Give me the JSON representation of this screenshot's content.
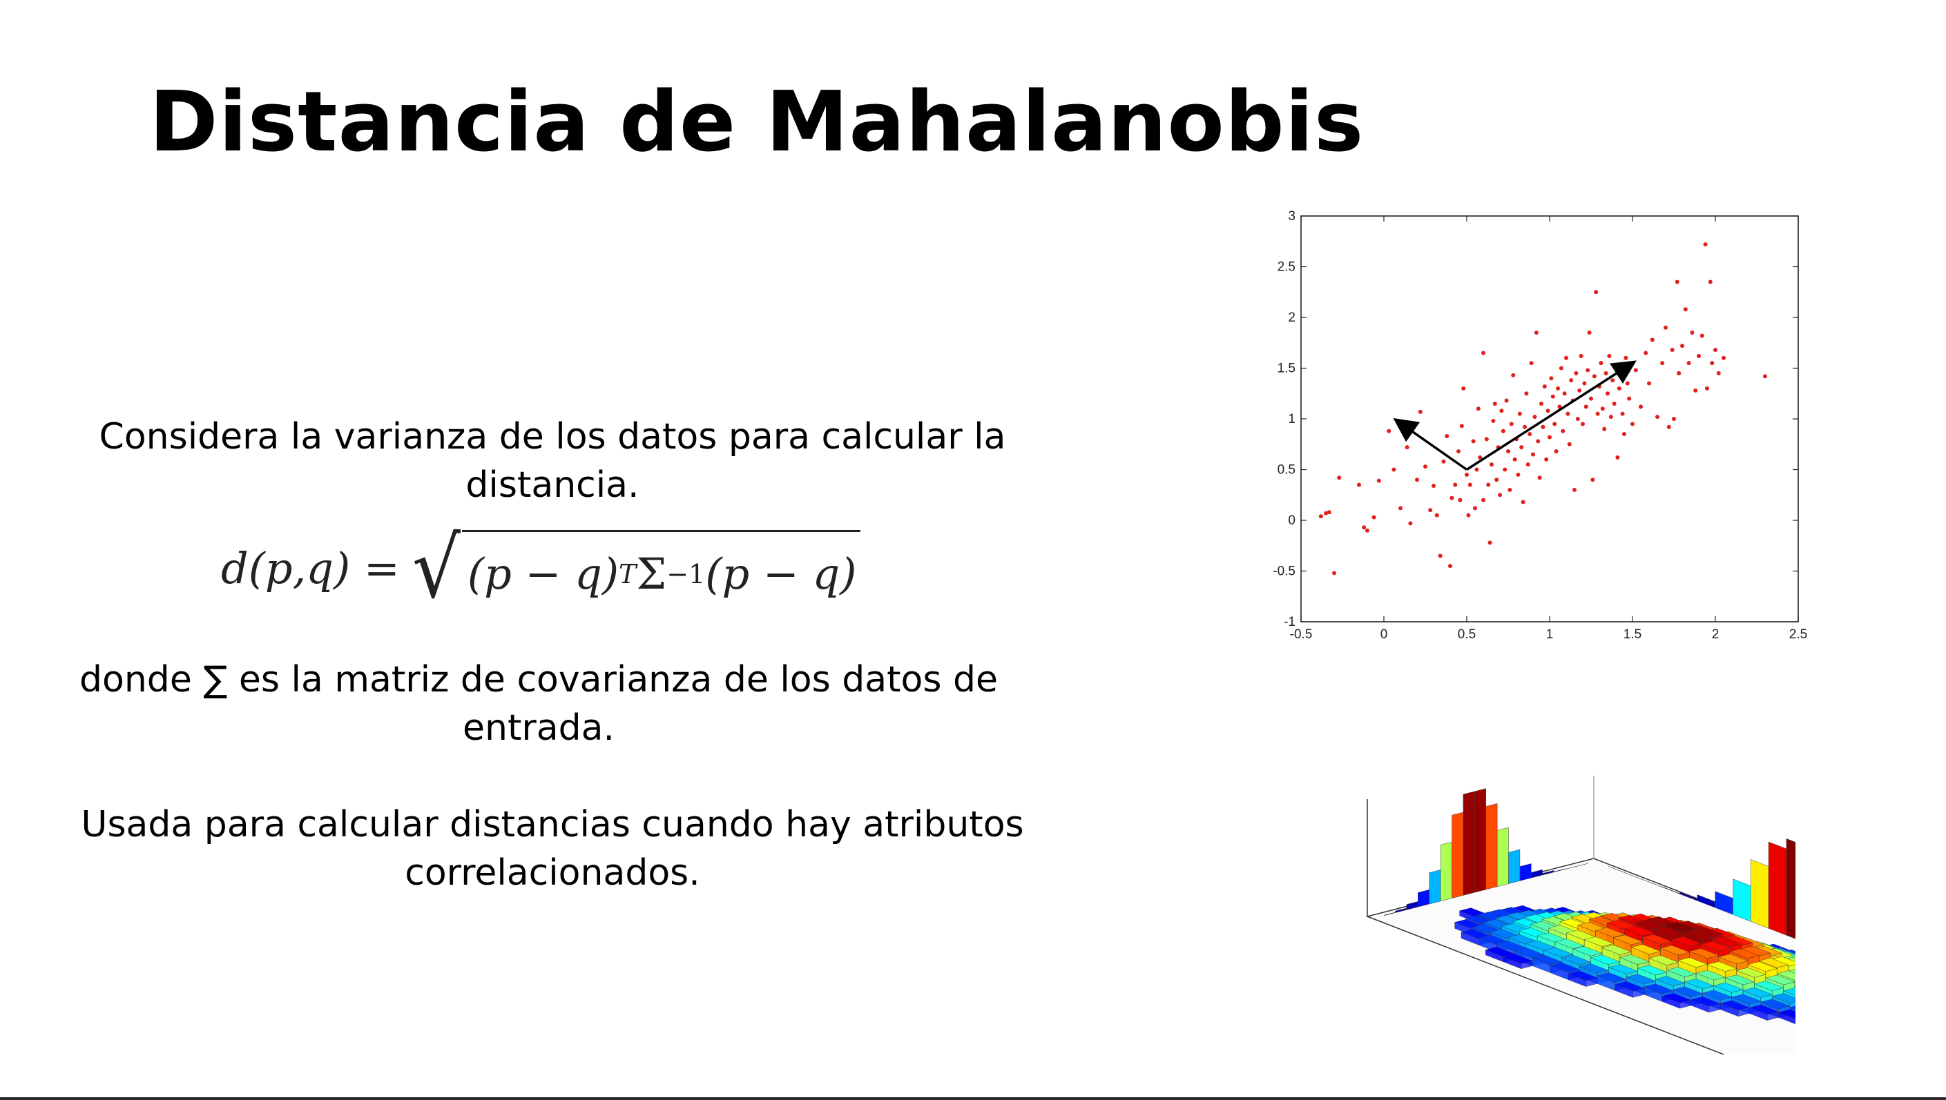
{
  "slide": {
    "title": "Distancia de Mahalanobis",
    "para1": "Considera la varianza de los datos para calcular la distancia.",
    "formula": {
      "lhs": "d(p,q) =",
      "radicand_a": "(p − q)",
      "sup_a": "T",
      "radicand_b": "Σ",
      "sup_b": "−1",
      "radicand_c": "(p − q)"
    },
    "para2": "donde ∑ es la matriz de covarianza de los datos de entrada.",
    "para3": "Usada para calcular distancias cuando hay atributos correlacionados."
  },
  "chart_data": [
    {
      "type": "scatter",
      "title": "",
      "xlabel": "",
      "ylabel": "",
      "xlim": [
        -0.5,
        2.5
      ],
      "ylim": [
        -1,
        3
      ],
      "xticks": [
        "-0.5",
        "0",
        "0.5",
        "1",
        "1.5",
        "2",
        "2.5"
      ],
      "yticks": [
        "-1",
        "-0.5",
        "0",
        "0.5",
        "1",
        "1.5",
        "2",
        "2.5",
        "3"
      ],
      "point_color": "#e0201b",
      "series": [
        {
          "points": [
            [
              -0.38,
              0.04
            ],
            [
              -0.35,
              0.07
            ],
            [
              -0.33,
              0.08
            ],
            [
              -0.3,
              -0.52
            ],
            [
              -0.27,
              0.42
            ],
            [
              -0.15,
              0.35
            ],
            [
              -0.12,
              -0.07
            ],
            [
              -0.1,
              -0.1
            ],
            [
              -0.06,
              0.03
            ],
            [
              -0.03,
              0.39
            ],
            [
              0.03,
              0.88
            ],
            [
              0.06,
              0.5
            ],
            [
              0.1,
              0.12
            ],
            [
              0.14,
              0.72
            ],
            [
              0.16,
              -0.03
            ],
            [
              0.2,
              0.4
            ],
            [
              0.22,
              1.07
            ],
            [
              0.25,
              0.53
            ],
            [
              0.28,
              0.1
            ],
            [
              0.3,
              0.34
            ],
            [
              0.32,
              0.05
            ],
            [
              0.34,
              -0.35
            ],
            [
              0.36,
              0.58
            ],
            [
              0.38,
              0.83
            ],
            [
              0.4,
              -0.45
            ],
            [
              0.41,
              0.22
            ],
            [
              0.43,
              0.35
            ],
            [
              0.45,
              0.68
            ],
            [
              0.46,
              0.2
            ],
            [
              0.47,
              0.93
            ],
            [
              0.48,
              1.3
            ],
            [
              0.5,
              0.45
            ],
            [
              0.51,
              0.05
            ],
            [
              0.52,
              0.35
            ],
            [
              0.54,
              0.78
            ],
            [
              0.55,
              0.12
            ],
            [
              0.56,
              0.5
            ],
            [
              0.57,
              1.1
            ],
            [
              0.58,
              0.62
            ],
            [
              0.6,
              0.2
            ],
            [
              0.6,
              1.65
            ],
            [
              0.62,
              0.8
            ],
            [
              0.63,
              0.35
            ],
            [
              0.64,
              -0.22
            ],
            [
              0.65,
              0.55
            ],
            [
              0.66,
              0.98
            ],
            [
              0.67,
              1.15
            ],
            [
              0.68,
              0.4
            ],
            [
              0.69,
              0.72
            ],
            [
              0.7,
              0.25
            ],
            [
              0.71,
              1.08
            ],
            [
              0.72,
              0.88
            ],
            [
              0.73,
              0.5
            ],
            [
              0.74,
              1.18
            ],
            [
              0.75,
              0.68
            ],
            [
              0.76,
              0.3
            ],
            [
              0.77,
              0.95
            ],
            [
              0.78,
              1.43
            ],
            [
              0.79,
              0.6
            ],
            [
              0.8,
              0.8
            ],
            [
              0.81,
              0.45
            ],
            [
              0.82,
              1.05
            ],
            [
              0.83,
              0.72
            ],
            [
              0.84,
              0.18
            ],
            [
              0.85,
              0.92
            ],
            [
              0.86,
              1.25
            ],
            [
              0.87,
              0.55
            ],
            [
              0.88,
              0.85
            ],
            [
              0.89,
              1.55
            ],
            [
              0.9,
              0.65
            ],
            [
              0.91,
              1.02
            ],
            [
              0.92,
              1.85
            ],
            [
              0.93,
              0.78
            ],
            [
              0.94,
              0.42
            ],
            [
              0.95,
              1.15
            ],
            [
              0.96,
              0.92
            ],
            [
              0.97,
              1.32
            ],
            [
              0.98,
              0.6
            ],
            [
              0.99,
              1.08
            ],
            [
              1.0,
              0.82
            ],
            [
              1.01,
              1.4
            ],
            [
              1.02,
              1.22
            ],
            [
              1.03,
              0.95
            ],
            [
              1.04,
              0.68
            ],
            [
              1.05,
              1.3
            ],
            [
              1.06,
              1.12
            ],
            [
              1.07,
              1.5
            ],
            [
              1.08,
              0.88
            ],
            [
              1.09,
              1.25
            ],
            [
              1.1,
              1.6
            ],
            [
              1.11,
              1.05
            ],
            [
              1.12,
              0.75
            ],
            [
              1.13,
              1.38
            ],
            [
              1.14,
              1.18
            ],
            [
              1.15,
              0.3
            ],
            [
              1.16,
              1.45
            ],
            [
              1.17,
              1.0
            ],
            [
              1.18,
              1.28
            ],
            [
              1.19,
              1.62
            ],
            [
              1.2,
              0.95
            ],
            [
              1.21,
              1.35
            ],
            [
              1.22,
              1.12
            ],
            [
              1.23,
              1.48
            ],
            [
              1.24,
              1.85
            ],
            [
              1.25,
              1.2
            ],
            [
              1.26,
              0.4
            ],
            [
              1.27,
              1.42
            ],
            [
              1.28,
              2.25
            ],
            [
              1.29,
              1.05
            ],
            [
              1.3,
              1.32
            ],
            [
              1.31,
              1.55
            ],
            [
              1.32,
              1.1
            ],
            [
              1.33,
              0.9
            ],
            [
              1.34,
              1.45
            ],
            [
              1.35,
              1.25
            ],
            [
              1.36,
              1.62
            ],
            [
              1.37,
              1.02
            ],
            [
              1.38,
              1.38
            ],
            [
              1.39,
              1.15
            ],
            [
              1.4,
              1.52
            ],
            [
              1.41,
              0.62
            ],
            [
              1.42,
              1.3
            ],
            [
              1.43,
              1.45
            ],
            [
              1.44,
              1.05
            ],
            [
              1.45,
              0.85
            ],
            [
              1.46,
              1.6
            ],
            [
              1.47,
              1.35
            ],
            [
              1.48,
              1.2
            ],
            [
              1.5,
              0.95
            ],
            [
              1.52,
              1.48
            ],
            [
              1.55,
              1.12
            ],
            [
              1.58,
              1.65
            ],
            [
              1.6,
              1.35
            ],
            [
              1.62,
              1.78
            ],
            [
              1.65,
              1.02
            ],
            [
              1.68,
              1.55
            ],
            [
              1.7,
              1.9
            ],
            [
              1.72,
              0.92
            ],
            [
              1.74,
              1.68
            ],
            [
              1.75,
              1.0
            ],
            [
              1.77,
              2.35
            ],
            [
              1.78,
              1.45
            ],
            [
              1.8,
              1.72
            ],
            [
              1.82,
              2.08
            ],
            [
              1.84,
              1.55
            ],
            [
              1.86,
              1.85
            ],
            [
              1.88,
              1.28
            ],
            [
              1.9,
              1.62
            ],
            [
              1.92,
              1.82
            ],
            [
              1.94,
              2.72
            ],
            [
              1.95,
              1.3
            ],
            [
              1.97,
              2.35
            ],
            [
              1.98,
              1.55
            ],
            [
              2.0,
              1.68
            ],
            [
              2.02,
              1.45
            ],
            [
              2.05,
              1.6
            ],
            [
              2.3,
              1.42
            ]
          ]
        }
      ],
      "annotations": [
        {
          "type": "arrow",
          "from": [
            0.5,
            0.5
          ],
          "to": [
            1.5,
            1.55
          ]
        },
        {
          "type": "arrow",
          "from": [
            0.5,
            0.5
          ],
          "to": [
            0.08,
            0.98
          ]
        }
      ]
    },
    {
      "type": "heatmap",
      "description_type": "3d-bivariate-histogram",
      "title": "",
      "colormap": "jet"
    }
  ]
}
